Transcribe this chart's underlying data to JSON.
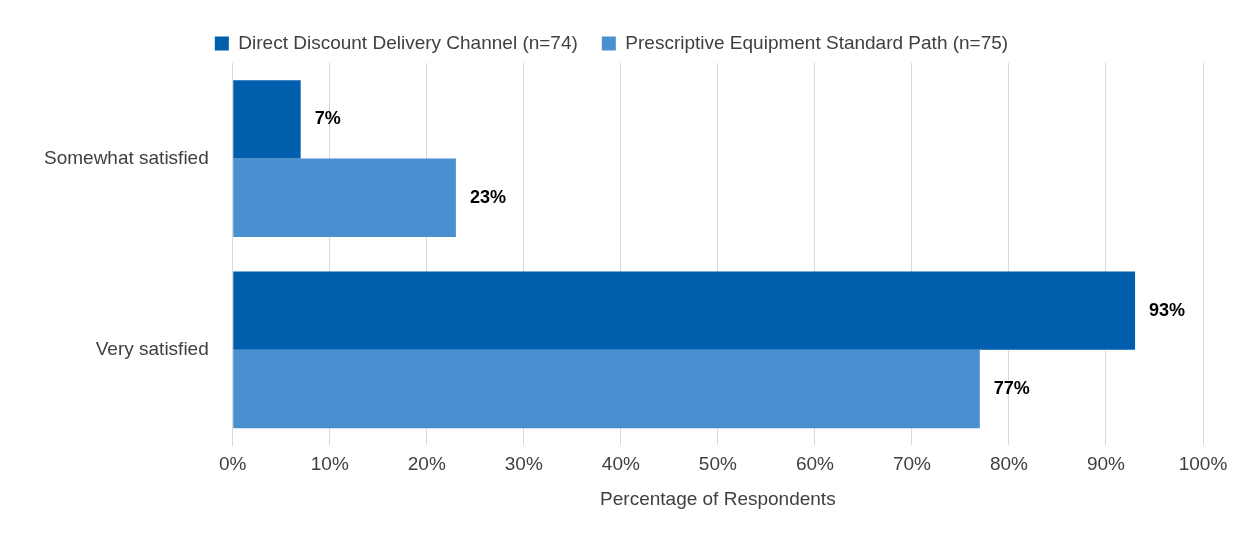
{
  "chart_data": {
    "type": "bar",
    "orientation": "horizontal",
    "xlabel": "Percentage of Respondents",
    "categories": [
      "Somewhat satisfied",
      "Very satisfied"
    ],
    "series": [
      {
        "name": "Direct Discount Delivery Channel (n=74)",
        "color": "#005eac",
        "values": [
          7,
          93
        ],
        "value_labels": [
          "7%",
          "93%"
        ]
      },
      {
        "name": "Prescriptive Equipment Standard Path (n=75)",
        "color": "#4a90d0",
        "values": [
          23,
          77
        ],
        "value_labels": [
          "23%",
          "77%"
        ]
      }
    ],
    "xlim": [
      0,
      100
    ],
    "xticks": [
      {
        "value": 0,
        "label": "0%"
      },
      {
        "value": 10,
        "label": "10%"
      },
      {
        "value": 20,
        "label": "20%"
      },
      {
        "value": 30,
        "label": "30%"
      },
      {
        "value": 40,
        "label": "40%"
      },
      {
        "value": 50,
        "label": "50%"
      },
      {
        "value": 60,
        "label": "60%"
      },
      {
        "value": 70,
        "label": "70%"
      },
      {
        "value": 80,
        "label": "80%"
      },
      {
        "value": 90,
        "label": "90%"
      },
      {
        "value": 100,
        "label": "100%"
      }
    ],
    "grid": "x",
    "legend": "top"
  }
}
